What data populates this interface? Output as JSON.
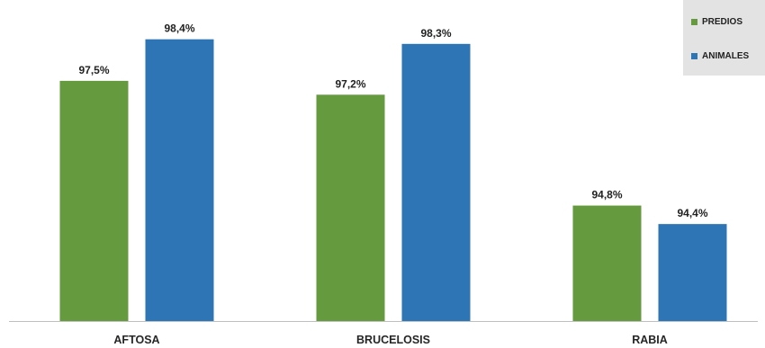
{
  "chart_data": {
    "type": "bar",
    "title": "",
    "xlabel": "",
    "ylabel": "",
    "categories": [
      "AFTOSA",
      "BRUCELOSIS",
      "RABIA"
    ],
    "series": [
      {
        "name": "PREDIOS",
        "color": "#659A3F",
        "values": [
          97.5,
          97.2,
          94.8
        ],
        "labels": [
          "97,5%",
          "97,2%",
          "94,8%"
        ]
      },
      {
        "name": "ANIMALES",
        "color": "#2E75B6",
        "values": [
          98.4,
          98.3,
          94.4
        ],
        "labels": [
          "98,4%",
          "98,3%",
          "94,4%"
        ]
      }
    ],
    "ylim": [
      92.3,
      98.9
    ],
    "grid": false,
    "legend": "top-right",
    "axis_color": "#BFBFBF"
  }
}
